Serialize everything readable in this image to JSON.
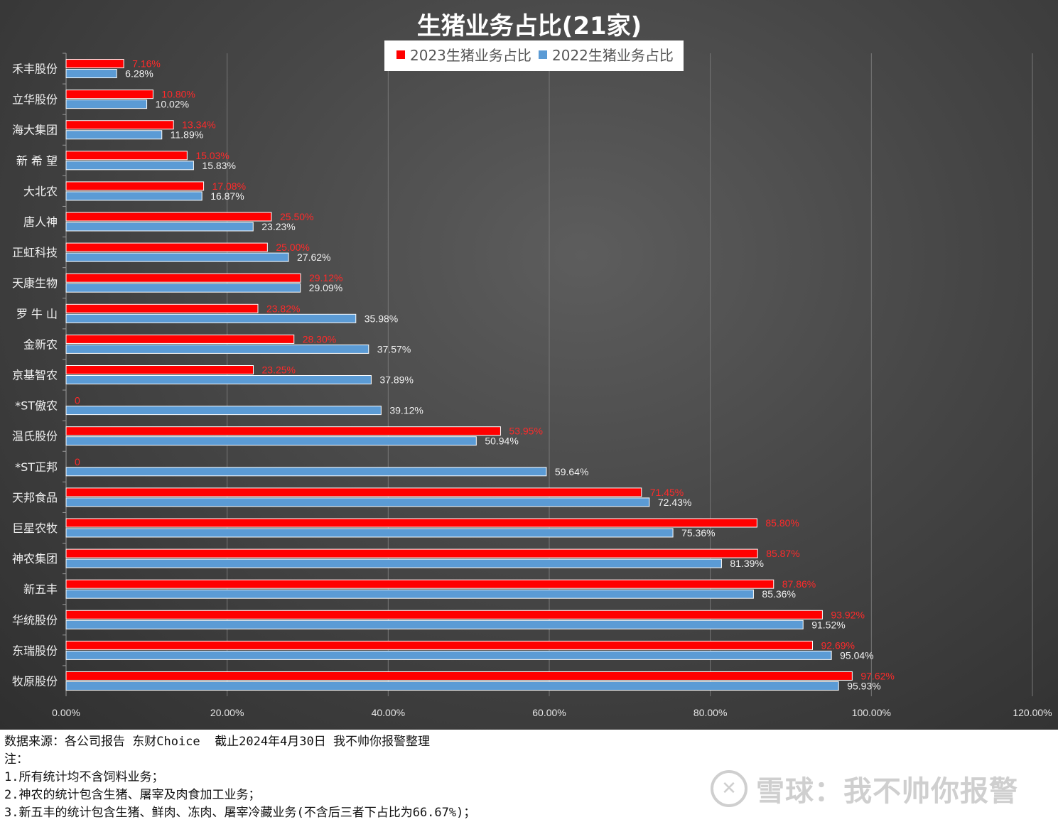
{
  "chart_data": {
    "type": "bar",
    "orientation": "horizontal",
    "title": "生猪业务占比(21家)",
    "categories": [
      "禾丰股份",
      "立华股份",
      "海大集团",
      "新 希 望",
      "大北农",
      "唐人神",
      "正虹科技",
      "天康生物",
      "罗 牛 山",
      "金新农",
      "京基智农",
      "*ST傲农",
      "温氏股份",
      "*ST正邦",
      "天邦食品",
      "巨星农牧",
      "神农集团",
      "新五丰",
      "华统股份",
      "东瑞股份",
      "牧原股份"
    ],
    "series": [
      {
        "name": "2023生猪业务占比",
        "color": "#ff0000",
        "values": [
          7.16,
          10.8,
          13.34,
          15.03,
          17.08,
          25.5,
          25.0,
          29.12,
          23.82,
          28.3,
          23.25,
          0,
          53.95,
          0,
          71.45,
          85.8,
          85.87,
          87.86,
          93.92,
          92.69,
          97.62
        ],
        "labels": [
          "7.16%",
          "10.80%",
          "13.34%",
          "15.03%",
          "17.08%",
          "25.50%",
          "25.00%",
          "29.12%",
          "23.82%",
          "28.30%",
          "23.25%",
          "0",
          "53.95%",
          "0",
          "71.45%",
          "85.80%",
          "85.87%",
          "87.86%",
          "93.92%",
          "92.69%",
          "97.62%"
        ]
      },
      {
        "name": "2022生猪业务占比",
        "color": "#5b9bd5",
        "values": [
          6.28,
          10.02,
          11.89,
          15.83,
          16.87,
          23.23,
          27.62,
          29.09,
          35.98,
          37.57,
          37.89,
          39.12,
          50.94,
          59.64,
          72.43,
          75.36,
          81.39,
          85.36,
          91.52,
          95.04,
          95.93
        ],
        "labels": [
          "6.28%",
          "10.02%",
          "11.89%",
          "15.83%",
          "16.87%",
          "23.23%",
          "27.62%",
          "29.09%",
          "35.98%",
          "37.57%",
          "37.89%",
          "39.12%",
          "50.94%",
          "59.64%",
          "72.43%",
          "75.36%",
          "81.39%",
          "85.36%",
          "91.52%",
          "95.04%",
          "95.93%"
        ]
      }
    ],
    "xlim": [
      0,
      120
    ],
    "xticks": [
      "0.00%",
      "20.00%",
      "40.00%",
      "60.00%",
      "80.00%",
      "100.00%",
      "120.00%"
    ],
    "grid": true,
    "legend": "top-center"
  },
  "notes": {
    "source": "数据来源：各公司报告 东财Choice  截止2024年4月30日 我不帅你报警整理",
    "note_header": "注：",
    "note1": "1.所有统计均不含饲料业务；",
    "note2": "2.神农的统计包含生猪、屠宰及肉食加工业务；",
    "note3": "3.新五丰的统计包含生猪、鲜肉、冻肉、屠宰冷藏业务(不含后三者下占比为66.67%)；"
  },
  "watermark": {
    "logo": "✕",
    "text": "雪球：我不帅你报警"
  }
}
